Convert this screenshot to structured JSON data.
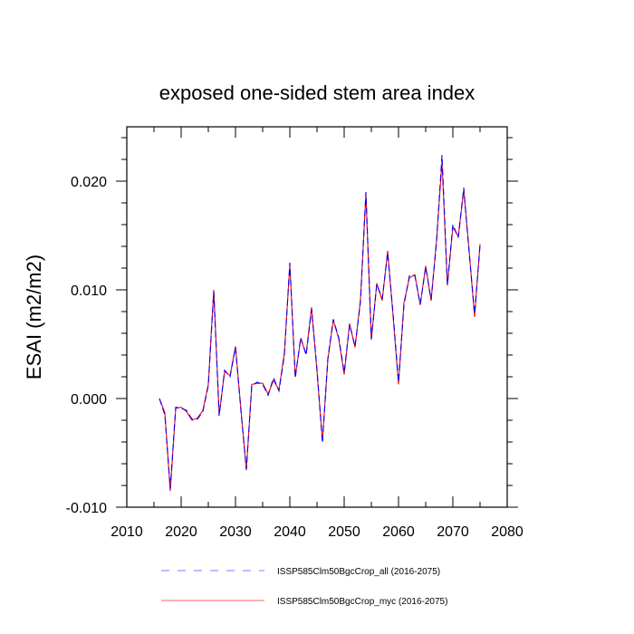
{
  "chart_data": {
    "type": "line",
    "title": "exposed one-sided stem area index",
    "xlabel": "",
    "ylabel": "ESAI  (m2/m2)",
    "xlim": [
      2010,
      2080
    ],
    "ylim": [
      -0.01,
      0.025
    ],
    "xticks": [
      2010,
      2020,
      2030,
      2040,
      2050,
      2060,
      2070,
      2080
    ],
    "xtick_labels": [
      "2010",
      "2020",
      "2030",
      "2040",
      "2050",
      "2060",
      "2070",
      "2080"
    ],
    "yticks": [
      -0.01,
      0.0,
      0.01,
      0.02
    ],
    "ytick_labels": [
      "-0.010",
      "0.000",
      "0.010",
      "0.020"
    ],
    "grid": false,
    "legend_position": "bottom",
    "x": [
      2016,
      2017,
      2018,
      2019,
      2020,
      2021,
      2022,
      2023,
      2024,
      2025,
      2026,
      2027,
      2028,
      2029,
      2030,
      2031,
      2032,
      2033,
      2034,
      2035,
      2036,
      2037,
      2038,
      2039,
      2040,
      2041,
      2042,
      2043,
      2044,
      2045,
      2046,
      2047,
      2048,
      2049,
      2050,
      2051,
      2052,
      2053,
      2054,
      2055,
      2056,
      2057,
      2058,
      2059,
      2060,
      2061,
      2062,
      2063,
      2064,
      2065,
      2066,
      2067,
      2068,
      2069,
      2070,
      2071,
      2072,
      2073,
      2074,
      2075
    ],
    "series": [
      {
        "name": "ISSP585Clm50BgcCrop_all (2016-2075)",
        "color": "#0000ff",
        "style": "dashed",
        "values": [
          0.0,
          -0.0015,
          -0.0083,
          -0.0008,
          -0.0009,
          -0.0011,
          -0.0019,
          -0.0019,
          -0.0012,
          0.0012,
          0.0098,
          -0.0016,
          0.0026,
          0.002,
          0.0047,
          -0.0011,
          -0.0065,
          0.0012,
          0.0015,
          0.0013,
          0.0003,
          0.0019,
          0.0007,
          0.004,
          0.0125,
          0.0019,
          0.0056,
          0.004,
          0.0082,
          0.0027,
          -0.0041,
          0.0037,
          0.0073,
          0.0056,
          0.0024,
          0.0068,
          0.0048,
          0.0089,
          0.019,
          0.0055,
          0.0105,
          0.0092,
          0.0134,
          0.0078,
          0.0015,
          0.0086,
          0.0113,
          0.0113,
          0.0087,
          0.0121,
          0.0091,
          0.0144,
          0.0224,
          0.0105,
          0.016,
          0.0148,
          0.0194,
          0.0134,
          0.0078,
          0.0141
        ]
      },
      {
        "name": "ISSP585Clm50BgcCrop_myc (2016-2075)",
        "color": "#ff0000",
        "style": "solid",
        "values": [
          0.0,
          -0.0013,
          -0.0085,
          -0.0009,
          -0.0008,
          -0.0012,
          -0.002,
          -0.0018,
          -0.0011,
          0.0013,
          0.01,
          -0.0015,
          0.0025,
          0.0021,
          0.0048,
          -0.001,
          -0.0066,
          0.0013,
          0.0014,
          0.0014,
          0.0004,
          0.0017,
          0.0008,
          0.0042,
          0.0123,
          0.002,
          0.0055,
          0.0041,
          0.0084,
          0.0025,
          -0.0039,
          0.0036,
          0.0072,
          0.0055,
          0.0022,
          0.0069,
          0.0047,
          0.0091,
          0.0188,
          0.0054,
          0.0106,
          0.009,
          0.0136,
          0.0076,
          0.0013,
          0.0088,
          0.0111,
          0.0114,
          0.0086,
          0.0122,
          0.009,
          0.0146,
          0.0218,
          0.0104,
          0.0158,
          0.0149,
          0.0192,
          0.0136,
          0.0075,
          0.0142
        ]
      }
    ]
  }
}
